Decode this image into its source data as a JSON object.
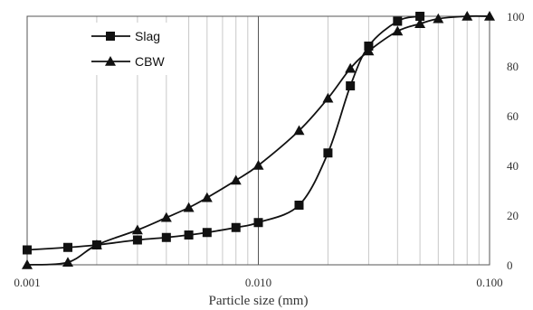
{
  "chart_data": {
    "type": "line",
    "xlabel": "Particle size (mm)",
    "ylabel": "",
    "x_scale": "log",
    "xlim": [
      0.001,
      0.1
    ],
    "ylim": [
      0,
      100
    ],
    "x_tick_labels": [
      "0.001",
      "0.010",
      "0.100"
    ],
    "y_tick_labels": [
      "0",
      "20",
      "40",
      "60",
      "80",
      "100"
    ],
    "grid": "vertical",
    "legend_position": "top-left",
    "series": [
      {
        "name": "Slag",
        "marker": "square",
        "color": "#111111",
        "x": [
          0.001,
          0.0015,
          0.002,
          0.003,
          0.004,
          0.005,
          0.006,
          0.008,
          0.01,
          0.015,
          0.02,
          0.025,
          0.03,
          0.04,
          0.05
        ],
        "y": [
          6,
          7,
          8,
          10,
          11,
          12,
          13,
          15,
          17,
          24,
          45,
          72,
          88,
          98,
          100
        ]
      },
      {
        "name": "CBW",
        "marker": "triangle",
        "color": "#111111",
        "x": [
          0.001,
          0.0015,
          0.002,
          0.003,
          0.004,
          0.005,
          0.006,
          0.008,
          0.01,
          0.015,
          0.02,
          0.025,
          0.03,
          0.04,
          0.05,
          0.06,
          0.08,
          0.1
        ],
        "y": [
          0,
          1,
          8,
          14,
          19,
          23,
          27,
          34,
          40,
          54,
          67,
          79,
          86,
          94,
          97,
          99,
          100,
          100
        ]
      }
    ]
  }
}
